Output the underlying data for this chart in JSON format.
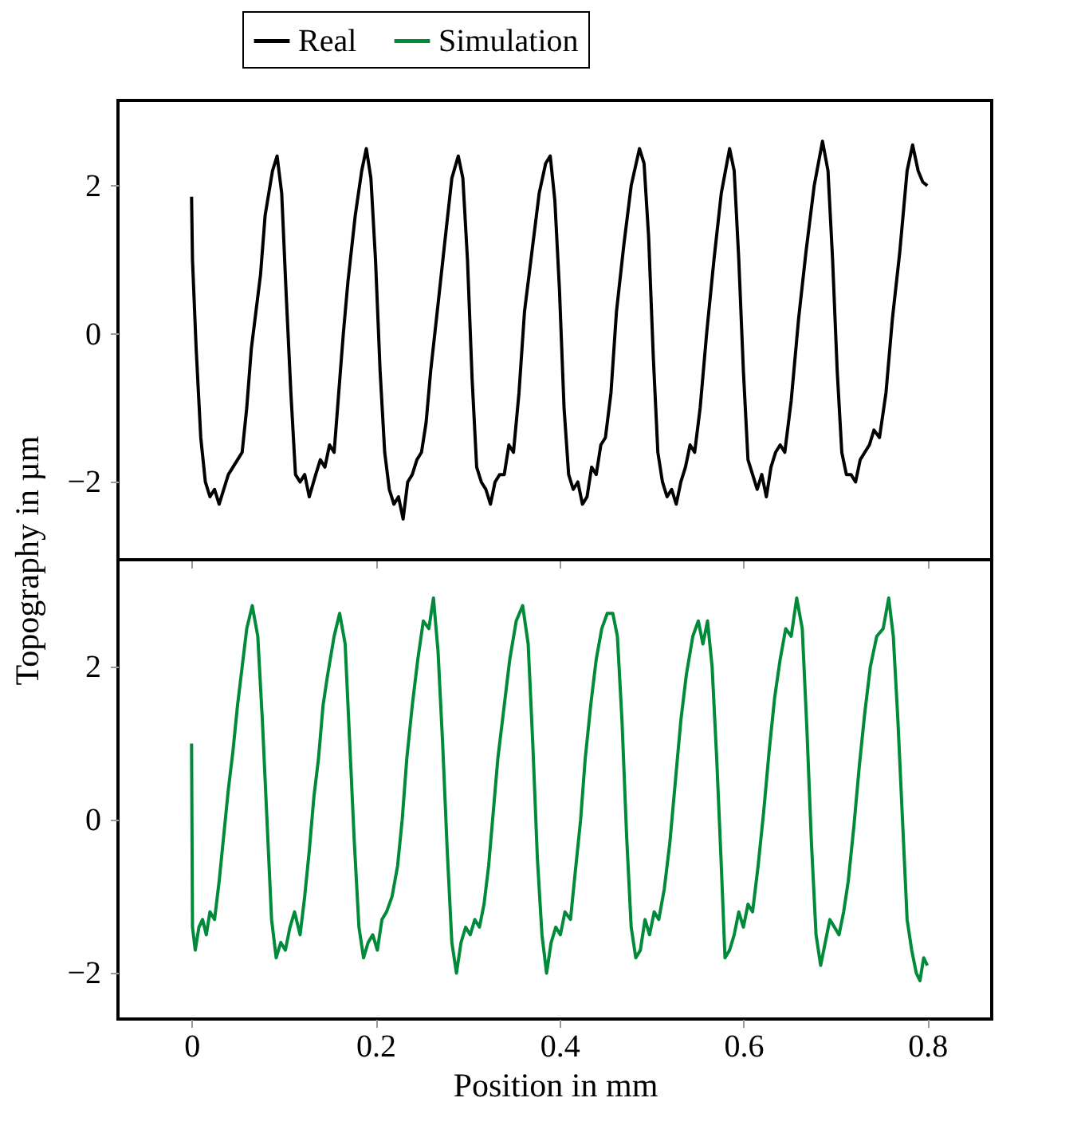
{
  "chart_data": [
    {
      "type": "line",
      "ylabel": "Topography in µm",
      "legend": "top",
      "grid": false,
      "tick_labels": "y",
      "line_style": "solid",
      "marker": "none",
      "xlim": [
        -0.08,
        0.87
      ],
      "xticks": [
        0,
        0.2,
        0.4,
        0.6,
        0.8
      ],
      "ylim": [
        -3.05,
        3.15
      ],
      "yticks": [
        {
          "value": -2,
          "label": "−2"
        },
        {
          "value": 0,
          "label": "0"
        },
        {
          "value": 2,
          "label": "2"
        }
      ],
      "series": [
        {
          "name": "Real",
          "color": "#000000",
          "x": [
            0,
            0.001,
            0.005,
            0.01,
            0.015,
            0.02,
            0.025,
            0.03,
            0.035,
            0.04,
            0.045,
            0.05,
            0.055,
            0.06,
            0.065,
            0.07,
            0.075,
            0.08,
            0.088,
            0.093,
            0.098,
            0.103,
            0.108,
            0.113,
            0.118,
            0.123,
            0.128,
            0.135,
            0.14,
            0.145,
            0.15,
            0.155,
            0.16,
            0.165,
            0.17,
            0.178,
            0.185,
            0.19,
            0.195,
            0.2,
            0.205,
            0.21,
            0.215,
            0.22,
            0.225,
            0.23,
            0.235,
            0.24,
            0.245,
            0.25,
            0.255,
            0.26,
            0.268,
            0.275,
            0.283,
            0.29,
            0.295,
            0.3,
            0.305,
            0.31,
            0.315,
            0.32,
            0.325,
            0.33,
            0.335,
            0.34,
            0.345,
            0.35,
            0.356,
            0.362,
            0.37,
            0.378,
            0.385,
            0.39,
            0.395,
            0.4,
            0.405,
            0.41,
            0.415,
            0.42,
            0.425,
            0.43,
            0.435,
            0.44,
            0.445,
            0.45,
            0.456,
            0.462,
            0.47,
            0.478,
            0.487,
            0.492,
            0.497,
            0.502,
            0.507,
            0.512,
            0.517,
            0.522,
            0.527,
            0.532,
            0.537,
            0.542,
            0.547,
            0.553,
            0.56,
            0.568,
            0.576,
            0.585,
            0.59,
            0.595,
            0.6,
            0.605,
            0.61,
            0.615,
            0.62,
            0.625,
            0.63,
            0.635,
            0.64,
            0.645,
            0.652,
            0.66,
            0.668,
            0.677,
            0.686,
            0.692,
            0.697,
            0.702,
            0.707,
            0.712,
            0.717,
            0.722,
            0.727,
            0.732,
            0.737,
            0.742,
            0.748,
            0.755,
            0.762,
            0.77,
            0.778,
            0.784,
            0.79,
            0.795,
            0.8
          ],
          "values": [
            1.85,
            1.0,
            -0.2,
            -1.4,
            -2.0,
            -2.2,
            -2.1,
            -2.3,
            -2.1,
            -1.9,
            -1.8,
            -1.7,
            -1.6,
            -1.0,
            -0.2,
            0.3,
            0.8,
            1.6,
            2.2,
            2.4,
            1.9,
            0.5,
            -0.8,
            -1.9,
            -2.0,
            -1.9,
            -2.2,
            -1.9,
            -1.7,
            -1.8,
            -1.5,
            -1.6,
            -0.8,
            0.0,
            0.7,
            1.6,
            2.2,
            2.5,
            2.1,
            1.0,
            -0.5,
            -1.6,
            -2.1,
            -2.3,
            -2.2,
            -2.5,
            -2.0,
            -1.9,
            -1.7,
            -1.6,
            -1.2,
            -0.5,
            0.4,
            1.2,
            2.1,
            2.4,
            2.1,
            1.0,
            -0.6,
            -1.8,
            -2.0,
            -2.1,
            -2.3,
            -2.0,
            -1.9,
            -1.9,
            -1.5,
            -1.6,
            -0.8,
            0.3,
            1.1,
            1.9,
            2.3,
            2.4,
            1.8,
            0.6,
            -1.0,
            -1.9,
            -2.1,
            -2.0,
            -2.3,
            -2.2,
            -1.8,
            -1.9,
            -1.5,
            -1.4,
            -0.8,
            0.3,
            1.2,
            2.0,
            2.5,
            2.3,
            1.3,
            -0.3,
            -1.6,
            -2.0,
            -2.2,
            -2.1,
            -2.3,
            -2.0,
            -1.8,
            -1.5,
            -1.6,
            -1.0,
            0.0,
            1.0,
            1.9,
            2.5,
            2.2,
            1.0,
            -0.5,
            -1.7,
            -1.9,
            -2.1,
            -1.9,
            -2.2,
            -1.8,
            -1.6,
            -1.5,
            -1.6,
            -0.9,
            0.2,
            1.1,
            2.0,
            2.6,
            2.2,
            1.0,
            -0.5,
            -1.6,
            -1.9,
            -1.9,
            -2.0,
            -1.7,
            -1.6,
            -1.5,
            -1.3,
            -1.4,
            -0.8,
            0.2,
            1.1,
            2.2,
            2.55,
            2.2,
            2.05,
            2.0
          ]
        }
      ]
    },
    {
      "type": "line",
      "xlabel": "Position in mm",
      "legend": "top",
      "grid": false,
      "line_style": "solid",
      "marker": "none",
      "xlim": [
        -0.08,
        0.87
      ],
      "xticks": [
        {
          "value": 0,
          "label": "0"
        },
        {
          "value": 0.2,
          "label": "0.2"
        },
        {
          "value": 0.4,
          "label": "0.4"
        },
        {
          "value": 0.6,
          "label": "0.6"
        },
        {
          "value": 0.8,
          "label": "0.8"
        }
      ],
      "ylim": [
        -2.6,
        3.4
      ],
      "yticks": [
        {
          "value": -2,
          "label": "−2"
        },
        {
          "value": 0,
          "label": "0"
        },
        {
          "value": 2,
          "label": "2"
        }
      ],
      "series": [
        {
          "name": "Simulation",
          "color": "#008a3a",
          "x": [
            0,
            0.001,
            0.004,
            0.008,
            0.012,
            0.016,
            0.02,
            0.025,
            0.03,
            0.035,
            0.04,
            0.045,
            0.05,
            0.055,
            0.06,
            0.066,
            0.072,
            0.077,
            0.082,
            0.087,
            0.092,
            0.097,
            0.102,
            0.107,
            0.112,
            0.118,
            0.123,
            0.128,
            0.133,
            0.138,
            0.143,
            0.148,
            0.155,
            0.161,
            0.167,
            0.172,
            0.177,
            0.182,
            0.187,
            0.192,
            0.197,
            0.202,
            0.207,
            0.212,
            0.218,
            0.224,
            0.229,
            0.234,
            0.24,
            0.246,
            0.252,
            0.258,
            0.263,
            0.268,
            0.273,
            0.278,
            0.283,
            0.288,
            0.293,
            0.298,
            0.303,
            0.308,
            0.313,
            0.318,
            0.323,
            0.328,
            0.333,
            0.34,
            0.346,
            0.353,
            0.36,
            0.366,
            0.371,
            0.376,
            0.381,
            0.386,
            0.391,
            0.396,
            0.401,
            0.406,
            0.412,
            0.417,
            0.423,
            0.428,
            0.434,
            0.44,
            0.446,
            0.452,
            0.458,
            0.463,
            0.468,
            0.473,
            0.478,
            0.483,
            0.488,
            0.493,
            0.498,
            0.503,
            0.508,
            0.514,
            0.52,
            0.526,
            0.532,
            0.538,
            0.545,
            0.551,
            0.556,
            0.561,
            0.566,
            0.571,
            0.576,
            0.58,
            0.585,
            0.59,
            0.595,
            0.6,
            0.605,
            0.61,
            0.616,
            0.622,
            0.628,
            0.634,
            0.64,
            0.646,
            0.652,
            0.658,
            0.664,
            0.669,
            0.674,
            0.679,
            0.684,
            0.689,
            0.694,
            0.699,
            0.704,
            0.709,
            0.714,
            0.72,
            0.726,
            0.732,
            0.738,
            0.745,
            0.752,
            0.758,
            0.763,
            0.768,
            0.773,
            0.778,
            0.783,
            0.788,
            0.792,
            0.796,
            0.8
          ],
          "values": [
            1.0,
            -1.4,
            -1.7,
            -1.4,
            -1.3,
            -1.5,
            -1.2,
            -1.3,
            -0.8,
            -0.2,
            0.4,
            0.9,
            1.5,
            2.0,
            2.5,
            2.8,
            2.4,
            1.3,
            0.0,
            -1.3,
            -1.8,
            -1.6,
            -1.7,
            -1.4,
            -1.2,
            -1.5,
            -1.0,
            -0.4,
            0.3,
            0.8,
            1.5,
            1.9,
            2.4,
            2.7,
            2.3,
            1.0,
            -0.3,
            -1.4,
            -1.8,
            -1.6,
            -1.5,
            -1.7,
            -1.3,
            -1.2,
            -1.0,
            -0.6,
            0.0,
            0.8,
            1.5,
            2.1,
            2.6,
            2.5,
            2.9,
            2.2,
            1.0,
            -0.4,
            -1.6,
            -2.0,
            -1.6,
            -1.4,
            -1.5,
            -1.3,
            -1.4,
            -1.1,
            -0.6,
            0.1,
            0.8,
            1.5,
            2.1,
            2.6,
            2.8,
            2.3,
            1.0,
            -0.5,
            -1.5,
            -2.0,
            -1.6,
            -1.4,
            -1.5,
            -1.2,
            -1.3,
            -0.7,
            0.0,
            0.8,
            1.5,
            2.1,
            2.5,
            2.7,
            2.7,
            2.4,
            1.3,
            -0.2,
            -1.4,
            -1.8,
            -1.7,
            -1.3,
            -1.5,
            -1.2,
            -1.3,
            -0.9,
            -0.3,
            0.5,
            1.3,
            1.9,
            2.4,
            2.6,
            2.3,
            2.6,
            2.0,
            0.8,
            -0.6,
            -1.8,
            -1.7,
            -1.5,
            -1.2,
            -1.4,
            -1.1,
            -1.2,
            -0.6,
            0.1,
            0.9,
            1.6,
            2.1,
            2.5,
            2.4,
            2.9,
            2.5,
            1.2,
            -0.3,
            -1.5,
            -1.9,
            -1.6,
            -1.3,
            -1.4,
            -1.5,
            -1.2,
            -0.8,
            -0.1,
            0.7,
            1.4,
            2.0,
            2.4,
            2.5,
            2.9,
            2.4,
            1.3,
            0.0,
            -1.3,
            -1.7,
            -2.0,
            -2.1,
            -1.8,
            -1.9
          ]
        }
      ]
    }
  ]
}
